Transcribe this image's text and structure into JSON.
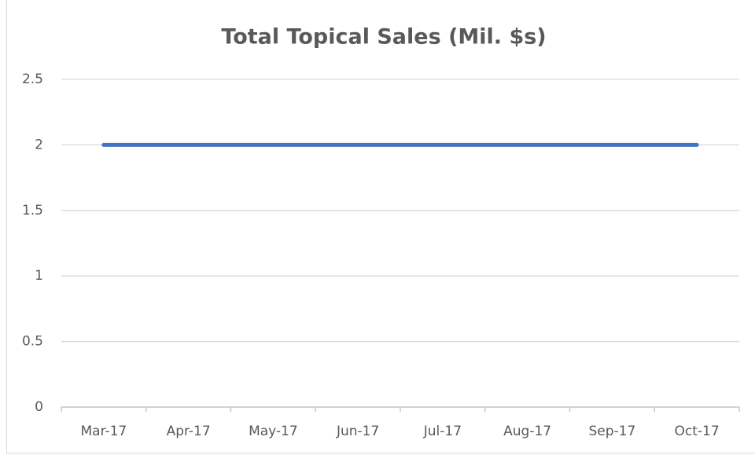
{
  "chart_data": {
    "type": "line",
    "title": "Total Topical Sales (Mil. $s)",
    "categories": [
      "Mar-17",
      "Apr-17",
      "May-17",
      "Jun-17",
      "Jul-17",
      "Aug-17",
      "Sep-17",
      "Oct-17"
    ],
    "values": [
      2,
      2,
      2,
      2,
      2,
      2,
      2,
      2
    ],
    "color": "#4472c4",
    "ylim": [
      0,
      2.5
    ],
    "yticks": [
      0,
      0.5,
      1,
      1.5,
      2,
      2.5
    ],
    "grid": true
  }
}
